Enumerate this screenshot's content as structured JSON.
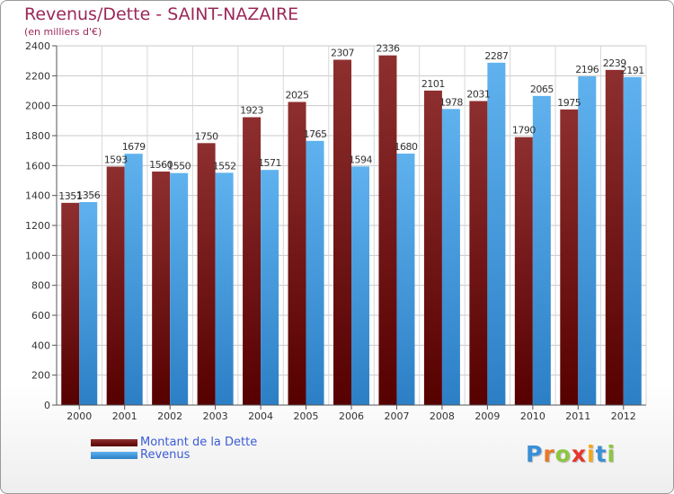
{
  "title": "Revenus/Dette - SAINT-NAZAIRE",
  "subtitle": "(en milliers d'€)",
  "logo": {
    "text": "Proxiti",
    "letter_colors": [
      "#3a8fd8",
      "#e8772a",
      "#8cc63f",
      "#e5352c",
      "#f2a81d",
      "#3a8fd8",
      "#8cc63f"
    ]
  },
  "chart_data": {
    "type": "bar",
    "title": "Revenus/Dette - SAINT-NAZAIRE",
    "subtitle": "(en milliers d'€)",
    "categories": [
      "2000",
      "2001",
      "2002",
      "2003",
      "2004",
      "2005",
      "2006",
      "2007",
      "2008",
      "2009",
      "2010",
      "2011",
      "2012"
    ],
    "series": [
      {
        "name": "Montant de la Dette",
        "color": "#7a1c1c",
        "values": [
          1351,
          1593,
          1560,
          1750,
          1923,
          2025,
          2307,
          2336,
          2101,
          2031,
          1790,
          1975,
          2239
        ],
        "labels": [
          "1351",
          "1593",
          "1560",
          "1750",
          "1923",
          "2025",
          "2307",
          "2336",
          "2101",
          "2031",
          "1790",
          "1975",
          "2239"
        ]
      },
      {
        "name": "Revenus",
        "color": "#4a9fe0",
        "values": [
          1356,
          1679,
          1550,
          1552,
          1571,
          1765,
          1594,
          1680,
          1978,
          2287,
          2065,
          2196,
          2191
        ],
        "labels": [
          "1356",
          "1679",
          "1550",
          "1552",
          "1571",
          "1765",
          "1594",
          "1680",
          "1978",
          "2287",
          "2065",
          "2196",
          "2191"
        ]
      }
    ],
    "ylim": [
      0,
      2400
    ],
    "yticks": [
      0,
      200,
      400,
      600,
      800,
      1000,
      1200,
      1400,
      1600,
      1800,
      2000,
      2200,
      2400
    ],
    "grid": true,
    "legend_position": "bottom-left"
  }
}
